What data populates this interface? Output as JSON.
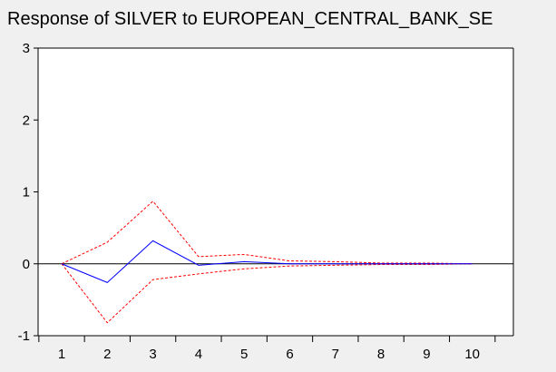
{
  "chart_data": {
    "type": "line",
    "title": "Response of SILVER to EUROPEAN_CENTRAL_BANK_SE",
    "xlabel": "",
    "ylabel": "",
    "x": [
      1,
      2,
      3,
      4,
      5,
      6,
      7,
      8,
      9,
      10
    ],
    "x_tick_labels": [
      "1",
      "2",
      "3",
      "4",
      "5",
      "6",
      "7",
      "8",
      "9",
      "10"
    ],
    "ylim": [
      -1,
      3
    ],
    "y_ticks": [
      -1,
      0,
      1,
      2,
      3
    ],
    "y_tick_labels": [
      "-1",
      "0",
      "1",
      "2",
      "3"
    ],
    "grid": false,
    "zero_line": true,
    "series": [
      {
        "key": "response",
        "style": "solid",
        "color": "#0000ff",
        "values": [
          0.0,
          -0.26,
          0.32,
          -0.02,
          0.03,
          0.0,
          0.0,
          0.0,
          0.0,
          0.0
        ]
      },
      {
        "key": "upper",
        "style": "dashed",
        "color": "#ff0000",
        "values": [
          0.0,
          0.3,
          0.87,
          0.1,
          0.13,
          0.04,
          0.03,
          0.01,
          0.01,
          0.0
        ]
      },
      {
        "key": "lower",
        "style": "dashed",
        "color": "#ff0000",
        "values": [
          0.0,
          -0.82,
          -0.22,
          -0.14,
          -0.07,
          -0.03,
          -0.02,
          -0.01,
          -0.01,
          0.0
        ]
      }
    ]
  },
  "colors": {
    "background": "#f0f0f0",
    "plot_background": "#ffffff",
    "axis": "#000000",
    "zero_line": "#000000"
  }
}
